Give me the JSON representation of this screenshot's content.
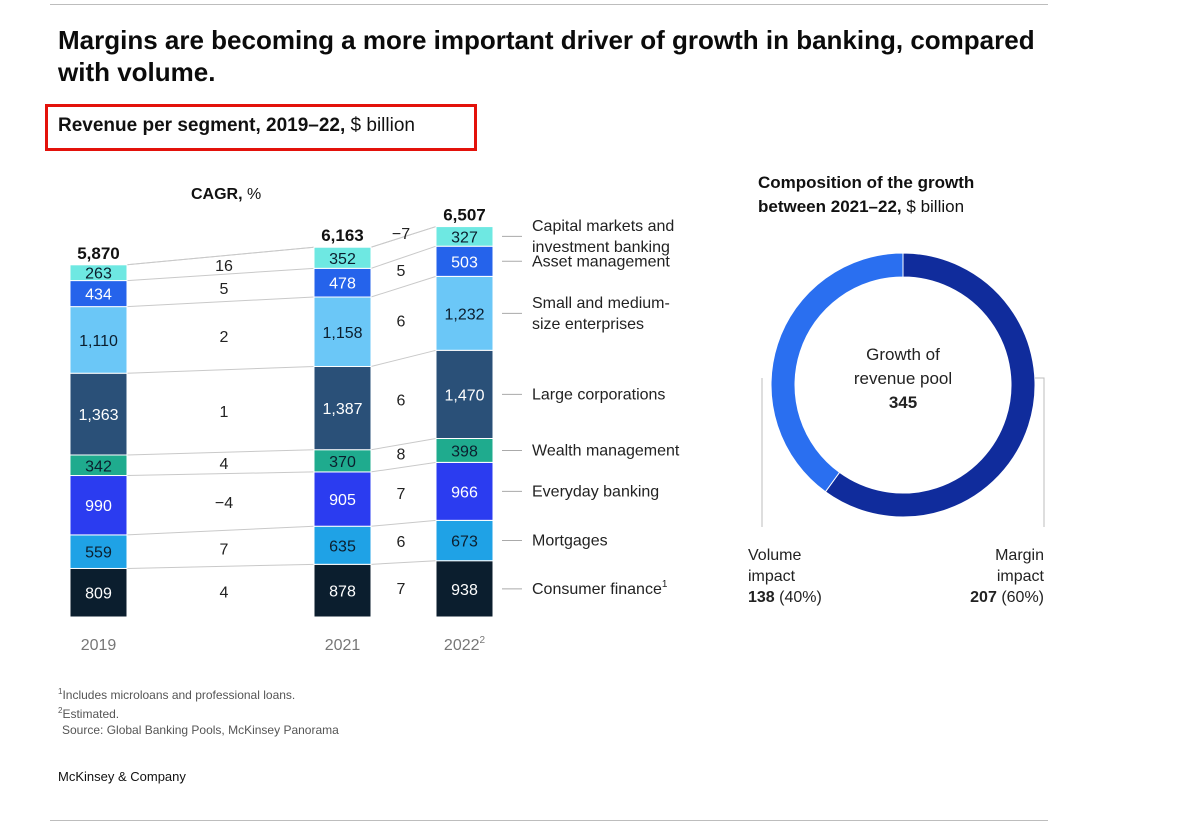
{
  "headline": "Margins are becoming a more important driver of growth in banking, compared with volume.",
  "subtitle": {
    "bold": "Revenue per segment, 2019–22,",
    "unit": "$ billion"
  },
  "cagr_label": {
    "bold": "CAGR,",
    "unit": "%"
  },
  "chart_data": [
    {
      "type": "bar",
      "title": "Revenue per segment, 2019–22, $ billion",
      "stacked": true,
      "categories": [
        "2019",
        "2021",
        "2022"
      ],
      "category_labels": [
        {
          "text": "2019",
          "sup": ""
        },
        {
          "text": "2021",
          "sup": ""
        },
        {
          "text": "2022",
          "sup": "2"
        }
      ],
      "totals": [
        "5,870",
        "6,163",
        "6,507"
      ],
      "series": [
        {
          "name": "Consumer finance",
          "sup": "1",
          "color": "#0b1e2e",
          "text_color": "#ffffff",
          "values": [
            809,
            878,
            938
          ],
          "labels": [
            "809",
            "878",
            "938"
          ]
        },
        {
          "name": "Mortgages",
          "sup": "",
          "color": "#1fa2e6",
          "text_color": "#0b1e2e",
          "values": [
            559,
            635,
            673
          ],
          "labels": [
            "559",
            "635",
            "673"
          ]
        },
        {
          "name": "Everyday banking",
          "sup": "",
          "color": "#2b3cf0",
          "text_color": "#ffffff",
          "values": [
            990,
            905,
            966
          ],
          "labels": [
            "990",
            "905",
            "966"
          ]
        },
        {
          "name": "Wealth management",
          "sup": "",
          "color": "#1fab8e",
          "text_color": "#0b1e2e",
          "values": [
            342,
            370,
            398
          ],
          "labels": [
            "342",
            "370",
            "398"
          ]
        },
        {
          "name": "Large corporations",
          "sup": "",
          "color": "#2a5078",
          "text_color": "#ffffff",
          "values": [
            1363,
            1387,
            1470
          ],
          "labels": [
            "1,363",
            "1,387",
            "1,470"
          ]
        },
        {
          "name": "Small and medium-size enterprises",
          "label_lines": [
            "Small and medium-",
            "size enterprises"
          ],
          "sup": "",
          "color": "#6bc7f7",
          "text_color": "#0b1e2e",
          "values": [
            1110,
            1158,
            1232
          ],
          "labels": [
            "1,110",
            "1,158",
            "1,232"
          ]
        },
        {
          "name": "Asset management",
          "sup": "",
          "color": "#2563eb",
          "text_color": "#ffffff",
          "values": [
            434,
            478,
            503
          ],
          "labels": [
            "434",
            "478",
            "503"
          ]
        },
        {
          "name": "Capital markets and investment banking",
          "label_lines": [
            "Capital markets and",
            "investment banking"
          ],
          "sup": "",
          "color": "#6ee8e2",
          "text_color": "#0b1e2e",
          "values": [
            263,
            352,
            327
          ],
          "labels": [
            "263",
            "352",
            "327"
          ]
        }
      ],
      "cagr_2019_2021": [
        "4",
        "7",
        "−4",
        "4",
        "1",
        "2",
        "5",
        "16"
      ],
      "cagr_2021_2022": [
        "7",
        "6",
        "7",
        "8",
        "6",
        "6",
        "5",
        "−7"
      ]
    },
    {
      "type": "pie",
      "title": "Composition of the growth between 2021–22, $ billion",
      "title_lines": {
        "bold_line1": "Composition of the growth",
        "bold_line2": "between 2021–22,",
        "unit": "$ billion"
      },
      "center_label": "Growth of revenue pool",
      "center_lines": [
        "Growth of",
        "revenue pool"
      ],
      "total": "345",
      "slices": [
        {
          "name": "Volume impact",
          "lines": [
            "Volume",
            "impact"
          ],
          "value": 138,
          "value_label": "138",
          "pct": "(40%)",
          "color": "#2a6ff0"
        },
        {
          "name": "Margin impact",
          "lines": [
            "Margin",
            "impact"
          ],
          "value": 207,
          "value_label": "207",
          "pct": "(60%)",
          "color": "#102c9c"
        }
      ]
    }
  ],
  "footnotes": {
    "note1": "Includes microloans and professional loans.",
    "note2": "Estimated.",
    "source": "Source: Global Banking Pools, McKinsey Panorama"
  },
  "brand": "McKinsey & Company"
}
